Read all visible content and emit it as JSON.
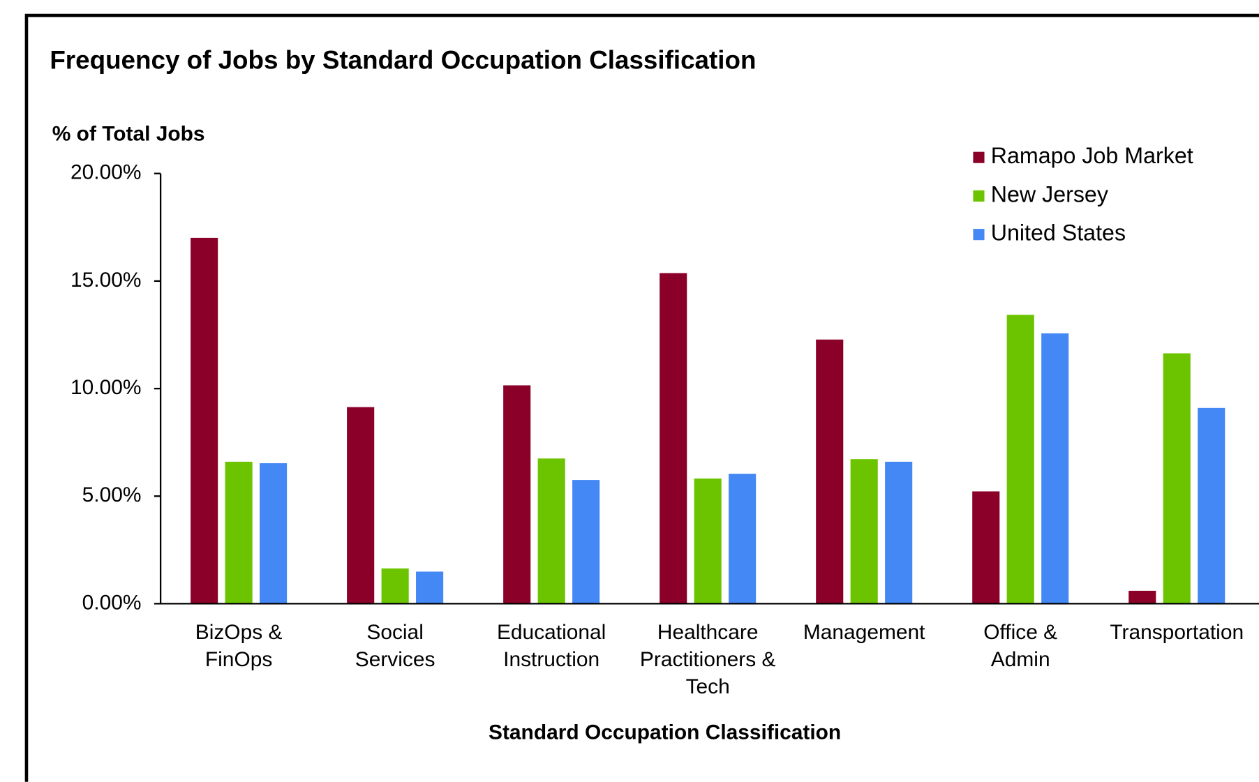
{
  "chart_data": {
    "type": "bar",
    "title": "Frequency of Jobs by Standard Occupation Classification",
    "y_axis_label": "% of Total Jobs",
    "x_axis_label": "Standard Occupation Classification",
    "categories": [
      "BizOps &\nFinOps",
      "Social\nServices",
      "Educational\nInstruction",
      "Healthcare\nPractitioners &\nTech",
      "Management",
      "Office &\nAdmin",
      "Transportation"
    ],
    "series": [
      {
        "name": "Ramapo Job Market",
        "color": "#8b0029",
        "values": [
          17.01,
          9.14,
          10.15,
          15.37,
          12.28,
          5.22,
          0.6
        ]
      },
      {
        "name": "New Jersey",
        "color": "#6cc400",
        "values": [
          6.6,
          1.64,
          6.75,
          5.82,
          6.72,
          13.43,
          11.64
        ]
      },
      {
        "name": "United States",
        "color": "#4488f5",
        "values": [
          6.53,
          1.49,
          5.75,
          6.04,
          6.6,
          12.57,
          9.1
        ]
      }
    ],
    "ylim": [
      0,
      20
    ],
    "yticks": [
      {
        "value": 0,
        "label": "0.00%"
      },
      {
        "value": 5,
        "label": "5.00%"
      },
      {
        "value": 10,
        "label": "10.00%"
      },
      {
        "value": 15,
        "label": "15.00%"
      },
      {
        "value": 20,
        "label": "20.00%"
      }
    ],
    "legend": "top-right"
  }
}
